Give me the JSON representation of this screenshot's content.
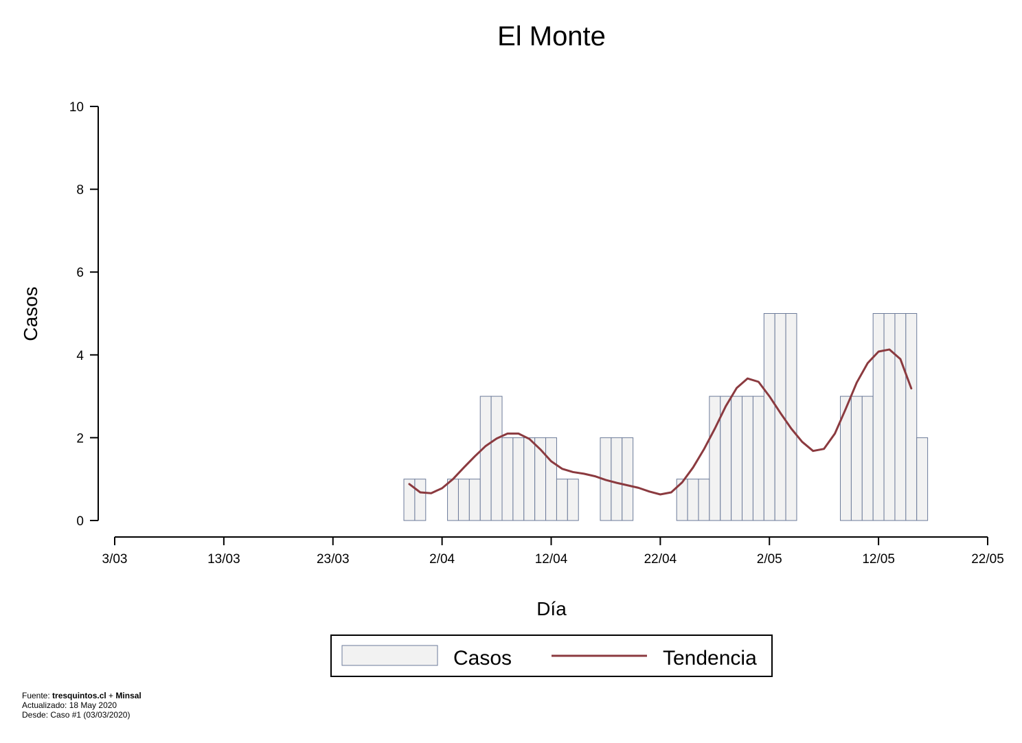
{
  "chart_data": {
    "type": "bar",
    "title": "El Monte",
    "xlabel": "Día",
    "ylabel": "Casos",
    "ylim": [
      0,
      10
    ],
    "yticks": [
      0,
      2,
      4,
      6,
      8,
      10
    ],
    "start_date": "03/03/2020",
    "xlim_days": [
      0,
      80
    ],
    "xticks": [
      {
        "day": 0,
        "label": "3/03"
      },
      {
        "day": 10,
        "label": "13/03"
      },
      {
        "day": 20,
        "label": "23/03"
      },
      {
        "day": 30,
        "label": "2/04"
      },
      {
        "day": 40,
        "label": "12/04"
      },
      {
        "day": 50,
        "label": "22/04"
      },
      {
        "day": 60,
        "label": "2/05"
      },
      {
        "day": 70,
        "label": "12/05"
      },
      {
        "day": 80,
        "label": "22/05"
      }
    ],
    "series": [
      {
        "name": "Casos",
        "type": "bar",
        "color": "#f2f2f2",
        "edge_color": "#6b7a99",
        "x": [
          27,
          28,
          29,
          30,
          31,
          32,
          33,
          34,
          35,
          36,
          37,
          38,
          39,
          40,
          41,
          42,
          43,
          44,
          45,
          46,
          47,
          48,
          49,
          50,
          51,
          52,
          53,
          54,
          55,
          56,
          57,
          58,
          59,
          60,
          61,
          62,
          63,
          64,
          65,
          66,
          67,
          68,
          69,
          70,
          71,
          72,
          73,
          74
        ],
        "values": [
          1,
          1,
          0,
          0,
          1,
          1,
          1,
          3,
          3,
          2,
          2,
          2,
          2,
          2,
          1,
          1,
          0,
          0,
          2,
          2,
          2,
          0,
          0,
          0,
          0,
          1,
          1,
          1,
          3,
          3,
          3,
          3,
          3,
          5,
          5,
          5,
          0,
          0,
          0,
          0,
          3,
          3,
          3,
          5,
          5,
          5,
          5,
          2
        ]
      },
      {
        "name": "Tendencia",
        "type": "line",
        "color": "#8b3a3f",
        "x": [
          27,
          28,
          29,
          30,
          31,
          32,
          33,
          34,
          35,
          36,
          37,
          38,
          39,
          40,
          41,
          42,
          43,
          44,
          45,
          46,
          47,
          48,
          49,
          50,
          51,
          52,
          53,
          54,
          55,
          56,
          57,
          58,
          59,
          60,
          61,
          62,
          63,
          64,
          65,
          66,
          67,
          68,
          69,
          70,
          71,
          72,
          73
        ],
        "values": [
          0.88,
          0.68,
          0.66,
          0.78,
          1.0,
          1.28,
          1.55,
          1.8,
          1.98,
          2.1,
          2.1,
          1.97,
          1.72,
          1.43,
          1.25,
          1.17,
          1.13,
          1.07,
          0.98,
          0.91,
          0.85,
          0.79,
          0.7,
          0.63,
          0.68,
          0.92,
          1.28,
          1.72,
          2.22,
          2.76,
          3.2,
          3.43,
          3.35,
          3.0,
          2.6,
          2.22,
          1.9,
          1.68,
          1.73,
          2.1,
          2.7,
          3.33,
          3.8,
          4.08,
          4.13,
          3.9,
          3.19
        ]
      }
    ],
    "legend": {
      "position": "bottom-center",
      "entries": [
        "Casos",
        "Tendencia"
      ]
    }
  },
  "footer": {
    "source_prefix": "Fuente: ",
    "source_site": "tresquintos.cl",
    "source_join": " + ",
    "source_org": "Minsal",
    "updated": "Actualizado: 18 May 2020",
    "since": "Desde: Caso #1  (03/03/2020)"
  }
}
